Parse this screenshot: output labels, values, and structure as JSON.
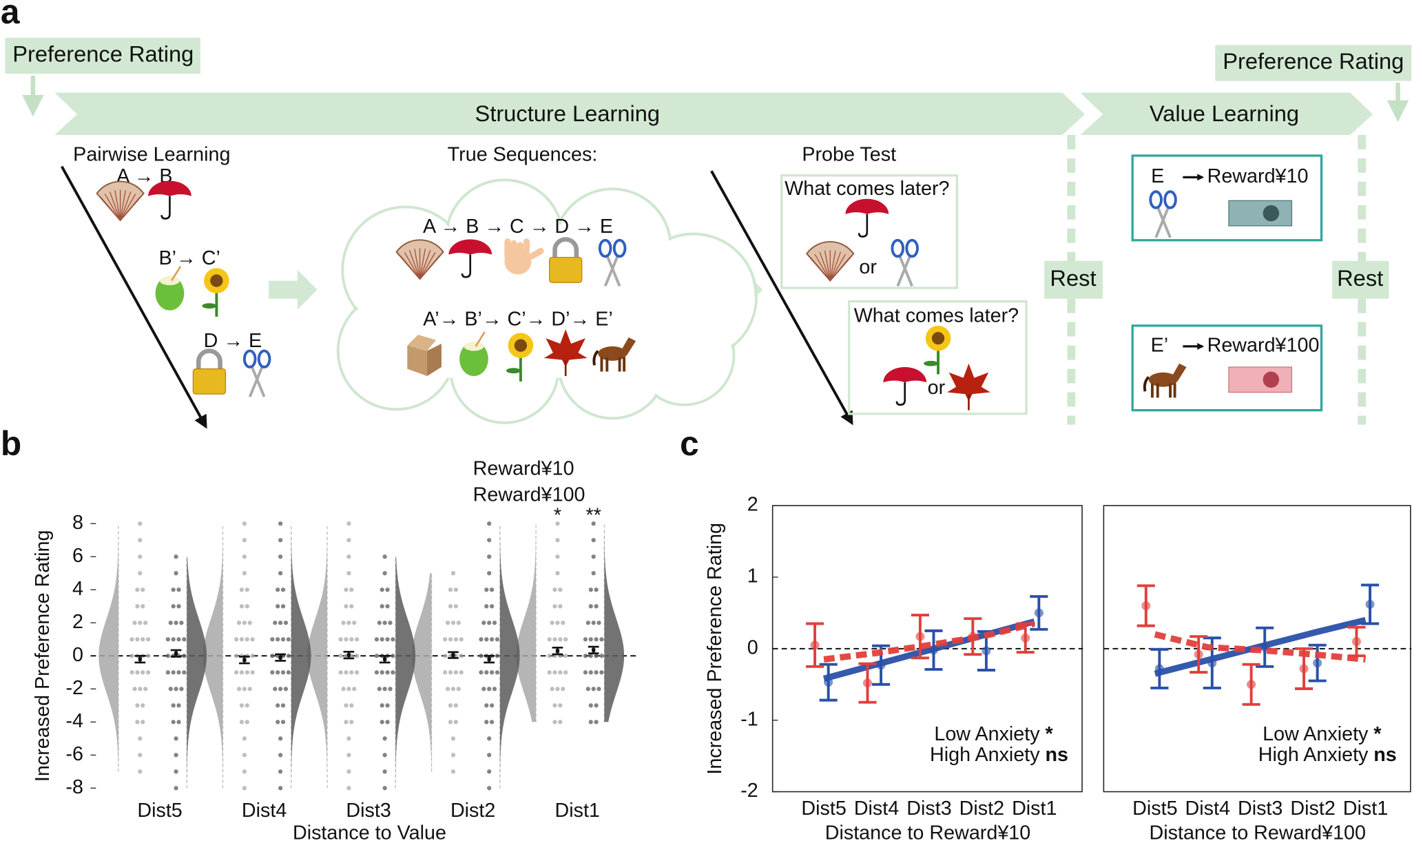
{
  "figure": {
    "panel_labels": [
      "a",
      "b",
      "c"
    ],
    "preference_rating_start": "Preference Rating",
    "preference_rating_end": "Preference Rating",
    "structure_learning": "Structure Learning",
    "value_learning": "Value Learning",
    "pairwise": {
      "title": "Pairwise Learning",
      "pairs": [
        "A → B",
        "B’→ C’",
        "D → E"
      ]
    },
    "true_sequences": {
      "title": "True Sequences:",
      "sequences": [
        "A → B → C → D → E",
        "A’→ B’→ C’→ D’→ E’"
      ]
    },
    "probe": {
      "title": "Probe Test",
      "questions": [
        "What comes later?",
        "What comes later?"
      ],
      "or": [
        "or",
        "or"
      ]
    },
    "rest": [
      "Rest",
      "Rest"
    ],
    "rewards": [
      {
        "item": "E",
        "label": "Reward¥10"
      },
      {
        "item": "E’",
        "label": "Reward¥100"
      }
    ]
  },
  "chart_data": [
    {
      "type": "violin",
      "xlabel": "Distance to Value",
      "ylabel": "Increased Preference Rating",
      "categories": [
        "Dist5",
        "Dist4",
        "Dist3",
        "Dist2",
        "Dist1"
      ],
      "ylim": [
        -8,
        8
      ],
      "yticks": [
        -8,
        -6,
        -4,
        -2,
        0,
        2,
        4,
        6,
        8
      ],
      "reference_line": 0,
      "series": [
        {
          "name": "Reward¥10",
          "color": "#a8a8a8",
          "values": [
            -0.2,
            -0.25,
            0.05,
            0.05,
            0.3
          ],
          "errors": [
            0.2,
            0.2,
            0.2,
            0.18,
            0.2
          ],
          "min": [
            -7,
            -8,
            -8,
            -7,
            -4
          ],
          "max": [
            8,
            8,
            8,
            5,
            8
          ],
          "significance": [
            null,
            null,
            null,
            null,
            "*"
          ]
        },
        {
          "name": "Reward¥100",
          "color": "#5a5a5a",
          "values": [
            0.15,
            -0.1,
            -0.2,
            -0.2,
            0.35
          ],
          "errors": [
            0.2,
            0.2,
            0.2,
            0.2,
            0.2
          ],
          "min": [
            -8,
            -8,
            -8,
            -8,
            -4
          ],
          "max": [
            6,
            8,
            6,
            8,
            8
          ],
          "significance": [
            null,
            null,
            null,
            null,
            "**"
          ]
        }
      ]
    },
    {
      "type": "errorbar",
      "xlabel": "Distance to Reward¥10",
      "ylabel": "Increased Preference Rating",
      "categories": [
        "Dist5",
        "Dist4",
        "Dist3",
        "Dist2",
        "Dist1"
      ],
      "ylim": [
        -2,
        2
      ],
      "yticks": [
        -2,
        -1,
        0,
        1,
        2
      ],
      "reference_line": 0,
      "series": [
        {
          "name": "Low Anxiety",
          "significance": "*",
          "color": "#2a50a8",
          "line": "solid",
          "values": [
            -0.47,
            -0.23,
            -0.02,
            -0.03,
            0.5
          ],
          "errors": [
            0.25,
            0.27,
            0.27,
            0.27,
            0.23
          ],
          "fit": [
            -0.42,
            -0.22,
            -0.02,
            0.18,
            0.38
          ]
        },
        {
          "name": "High Anxiety",
          "significance": "ns",
          "color": "#e0403c",
          "line": "dashed",
          "values": [
            0.05,
            -0.48,
            0.17,
            0.17,
            0.15
          ],
          "errors": [
            0.3,
            0.27,
            0.3,
            0.25,
            0.2
          ],
          "fit": [
            -0.15,
            -0.06,
            0.05,
            0.17,
            0.35
          ]
        }
      ]
    },
    {
      "type": "errorbar",
      "xlabel": "Distance to Reward¥100",
      "categories": [
        "Dist5",
        "Dist4",
        "Dist3",
        "Dist2",
        "Dist1"
      ],
      "ylim": [
        -2,
        2
      ],
      "reference_line": 0,
      "series": [
        {
          "name": "Low Anxiety",
          "significance": "*",
          "color": "#2a50a8",
          "line": "solid",
          "values": [
            -0.28,
            -0.2,
            0.02,
            -0.2,
            0.62
          ],
          "errors": [
            0.27,
            0.35,
            0.27,
            0.25,
            0.27
          ],
          "fit": [
            -0.35,
            -0.16,
            0.03,
            0.22,
            0.4
          ]
        },
        {
          "name": "High Anxiety",
          "significance": "ns",
          "color": "#e0403c",
          "line": "dashed",
          "values": [
            0.6,
            -0.08,
            -0.5,
            -0.28,
            0.1
          ],
          "errors": [
            0.28,
            0.25,
            0.28,
            0.28,
            0.2
          ],
          "fit": [
            0.2,
            0.02,
            -0.02,
            -0.08,
            -0.15
          ]
        }
      ]
    }
  ]
}
